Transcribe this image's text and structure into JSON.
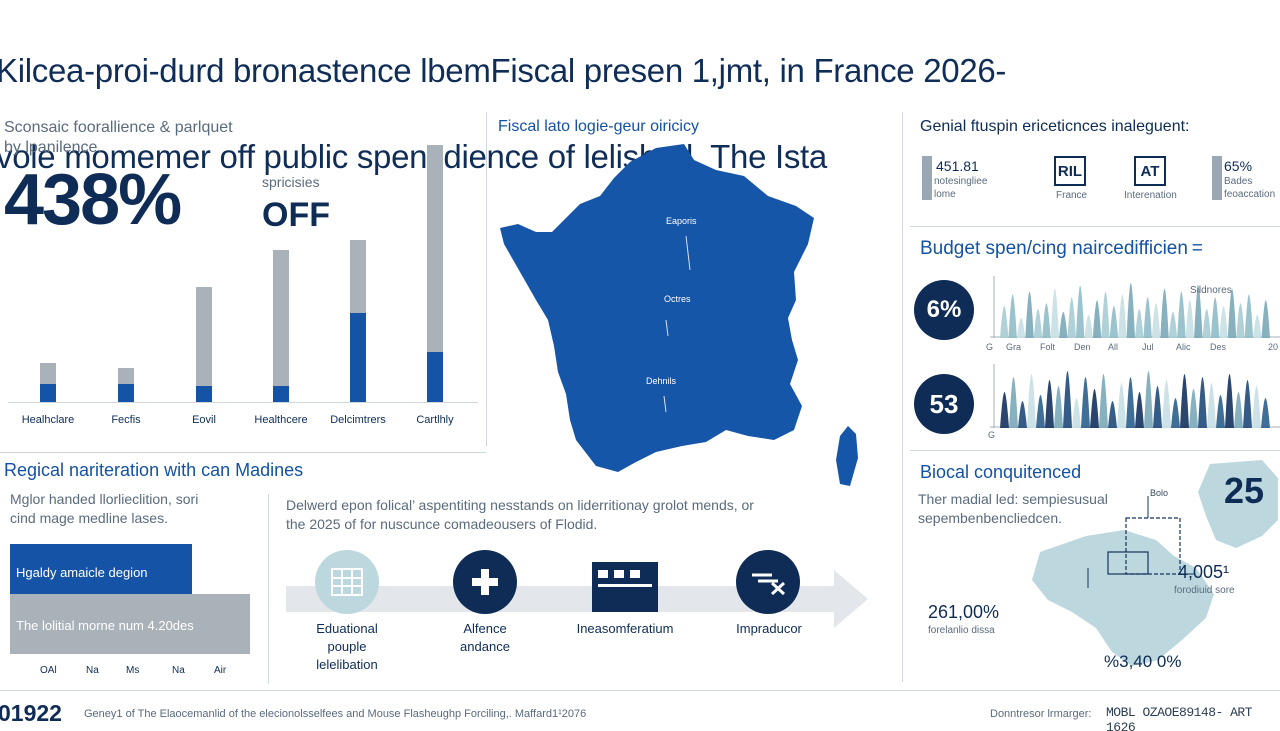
{
  "header": {
    "title_line1": "Kilcea-proi-durd bronastence lbemFiscal presen 1,jmt, in France 2026-",
    "title_line2": "vole momemer off public spensdience of lelishod. The Ista"
  },
  "left_panel": {
    "subtitle_line1": "Sconsaic foorallience & parlquet",
    "subtitle_line2": "by lpanilence.",
    "big_value": "438%",
    "off_small": "spricisies",
    "off_label": "OFF",
    "bars": {
      "categories": [
        "Healhclare",
        "Fecfis",
        "Eovil",
        "Healthcere",
        "Delcimtrers",
        "Cartlhly"
      ],
      "grey_totals": [
        0.15,
        0.13,
        0.44,
        0.58,
        0.62,
        0.98
      ],
      "blue_levels": [
        0.07,
        0.07,
        0.06,
        0.01,
        0.34,
        0.19
      ]
    }
  },
  "map_panel": {
    "title": "Fiscal lato logie-geur oiricicy",
    "labels": [
      "Eaporis",
      "Octres",
      "Dehnils"
    ]
  },
  "right_top": {
    "title": "Genial ftuspin ericeticnces inaleguent:",
    "stat1_value": "451.81",
    "stat1_line1": "notesingliee",
    "stat1_line2": "lome",
    "badge1": "RIL",
    "badge1_label": "France",
    "badge2": "AT",
    "badge2_label": "Interenation",
    "stat2_value": "65%",
    "stat2_line1": "Bades",
    "stat2_line2": "feoaccation"
  },
  "budget": {
    "title": "Budget spen/cing naircedifficien =",
    "circle1": "6%",
    "circle2": "53",
    "chart1_label": "Sildnores",
    "chart1_months": [
      "G",
      "Gra",
      "Folt",
      "Den",
      "All",
      "Jul",
      "Alic",
      "Des",
      "20"
    ],
    "chart2_tick": "G",
    "chart1_heights": [
      0.55,
      0.75,
      0.35,
      0.8,
      0.5,
      0.6,
      0.85,
      0.45,
      0.7,
      0.9,
      0.4,
      0.65,
      0.8,
      0.55,
      0.75,
      0.95,
      0.5,
      0.7,
      0.6,
      0.85,
      0.45,
      0.8,
      0.65,
      0.9,
      0.5,
      0.7,
      0.55,
      0.85,
      0.6,
      0.75,
      0.4,
      0.65
    ],
    "chart2_heights": [
      0.6,
      0.85,
      0.45,
      0.9,
      0.55,
      0.8,
      0.7,
      0.95,
      0.5,
      0.85,
      0.65,
      0.9,
      0.45,
      0.75,
      0.85,
      0.6,
      0.95,
      0.7,
      0.8,
      0.5,
      0.9,
      0.65,
      0.85,
      0.75,
      0.55,
      0.9,
      0.6,
      0.8,
      0.7,
      0.5
    ]
  },
  "regional": {
    "title": "Regical nariteration with can Madines",
    "desc_line1": "Mglor handed llorlieclition, sori",
    "desc_line2": "cind mage medline lases.",
    "bar1_label": "Hgaldy amaicle degion",
    "bar2_label": "The lolitial morne num 4.20des",
    "axis": [
      "OAl",
      "Na",
      "Ms",
      "Na",
      "Air"
    ]
  },
  "middle": {
    "desc_line1": "Delwerd epon folical’ aspentiting nesstands on liderritionay grolot mends, or",
    "desc_line2": "the 2025 of for nuscunce comadeousers of Flodid.",
    "steps": [
      {
        "icon": "grid-icon",
        "label": "Eduational\npouple\nlelelibation"
      },
      {
        "icon": "plus-icon",
        "label": "Alfence\nandance"
      },
      {
        "icon": "clapper-icon",
        "label": "Ineasomferatium"
      },
      {
        "icon": "tax-icon",
        "label": "Impraducor"
      }
    ]
  },
  "biocal": {
    "title": "Biocal conquitenced",
    "desc_line1": "Ther madial led: sempiesusual",
    "desc_line2": "sepembenbencliedcen.",
    "big": "25",
    "v1": "4,005¹",
    "v1_sub": "forodiuid sore",
    "v2": "261,00%",
    "v2_sub": "forelanlio dissa",
    "v3": "%3,40 0%",
    "small_label": "Bolo"
  },
  "footer": {
    "year": "01922",
    "text": "Geney1 of The Elaocemanlid of the elecionolsselfees and Mouse Flasheughp Forciling,. Maffard1¹2076",
    "credit": "Donntresor lrmarger:",
    "code": "MOBL OZAOE89148- ART 1626"
  },
  "colors": {
    "navy": "#0e2c55",
    "blue": "#1453a5",
    "grey": "#a9b1b9",
    "teal_light": "#bcd8de",
    "teal_dark": "#14325e"
  }
}
